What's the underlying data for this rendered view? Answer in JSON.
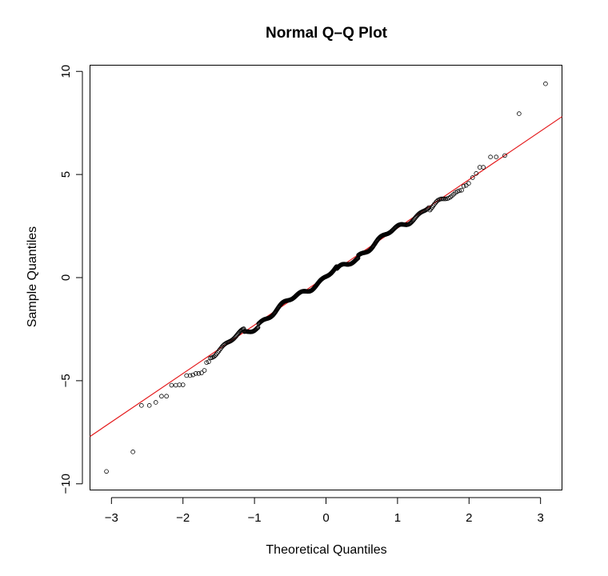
{
  "chart_data": {
    "type": "scatter",
    "title": "Normal Q–Q Plot",
    "xlabel": "Theoretical Quantiles",
    "ylabel": "Sample Quantiles",
    "xlim": [
      -3.3,
      3.3
    ],
    "ylim": [
      -10.3,
      10.3
    ],
    "xticks": [
      -3,
      -2,
      -1,
      0,
      1,
      2,
      3
    ],
    "yticks": [
      -10,
      -5,
      0,
      5,
      10
    ],
    "xtick_labels": [
      "−3",
      "−2",
      "−1",
      "0",
      "1",
      "2",
      "3"
    ],
    "ytick_labels": [
      "−10",
      "−5",
      "0",
      "5",
      "10"
    ],
    "n_points": 500,
    "reference_line": {
      "intercept": 0.05,
      "slope": 2.35,
      "color": "#e41a1c"
    },
    "points": [
      [
        -3.07,
        -9.4
      ],
      [
        -2.7,
        -8.45
      ],
      [
        -2.58,
        -6.2
      ],
      [
        -2.47,
        -6.2
      ],
      [
        -2.38,
        -6.05
      ],
      [
        -2.3,
        -5.75
      ],
      [
        -2.23,
        -5.75
      ],
      [
        -2.16,
        -5.22
      ],
      [
        -2.1,
        -5.22
      ],
      [
        -2.05,
        -5.2
      ],
      [
        -2.0,
        -5.2
      ],
      [
        -1.95,
        -4.75
      ],
      [
        -1.9,
        -4.75
      ],
      [
        -1.86,
        -4.72
      ],
      [
        -1.82,
        -4.65
      ],
      [
        -1.78,
        -4.65
      ],
      [
        -1.74,
        -4.62
      ],
      [
        -1.7,
        -4.5
      ],
      [
        -1.67,
        -4.12
      ],
      [
        -1.64,
        -4.08
      ],
      [
        2.05,
        4.85
      ],
      [
        2.1,
        5.05
      ],
      [
        2.15,
        5.35
      ],
      [
        2.2,
        5.35
      ],
      [
        2.3,
        5.85
      ],
      [
        2.38,
        5.85
      ],
      [
        2.5,
        5.92
      ],
      [
        2.7,
        7.95
      ],
      [
        3.07,
        9.4
      ]
    ],
    "body_quantile_range": [
      -1.62,
      2.0
    ]
  },
  "colors": {
    "points": "#000000",
    "reference_line": "#e41a1c",
    "background": "#ffffff"
  }
}
